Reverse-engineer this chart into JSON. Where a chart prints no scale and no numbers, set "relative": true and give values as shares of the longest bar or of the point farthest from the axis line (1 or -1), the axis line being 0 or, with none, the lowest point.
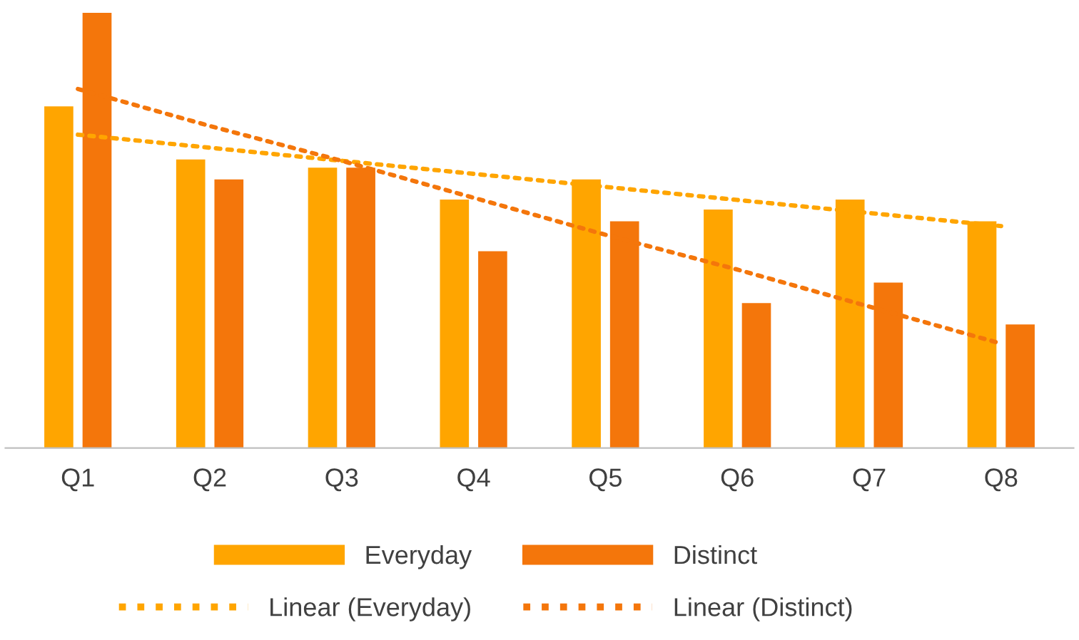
{
  "chart_data": {
    "type": "bar",
    "relative": true,
    "categories": [
      "Q1",
      "Q2",
      "Q3",
      "Q4",
      "Q5",
      "Q6",
      "Q7",
      "Q8"
    ],
    "series": [
      {
        "name": "Everyday",
        "color": "#ffa500",
        "values": [
          0.785,
          0.663,
          0.644,
          0.571,
          0.617,
          0.548,
          0.571,
          0.521
        ]
      },
      {
        "name": "Distinct",
        "color": "#f4760b",
        "values": [
          1,
          0.617,
          0.644,
          0.452,
          0.521,
          0.333,
          0.38,
          0.284
        ]
      },
      {
        "name": "Linear (Everyday)",
        "type": "line",
        "line_style": "dotted",
        "color": "#ffa500",
        "values": [
          0.72,
          0.69,
          0.66,
          0.63,
          0.6,
          0.57,
          0.54,
          0.51
        ]
      },
      {
        "name": "Linear (Distinct)",
        "type": "line",
        "line_style": "dotted",
        "color": "#f4760b",
        "values": [
          0.825,
          0.74,
          0.66,
          0.575,
          0.49,
          0.41,
          0.325,
          0.24
        ]
      }
    ],
    "legend": "bottom",
    "grid": false
  }
}
